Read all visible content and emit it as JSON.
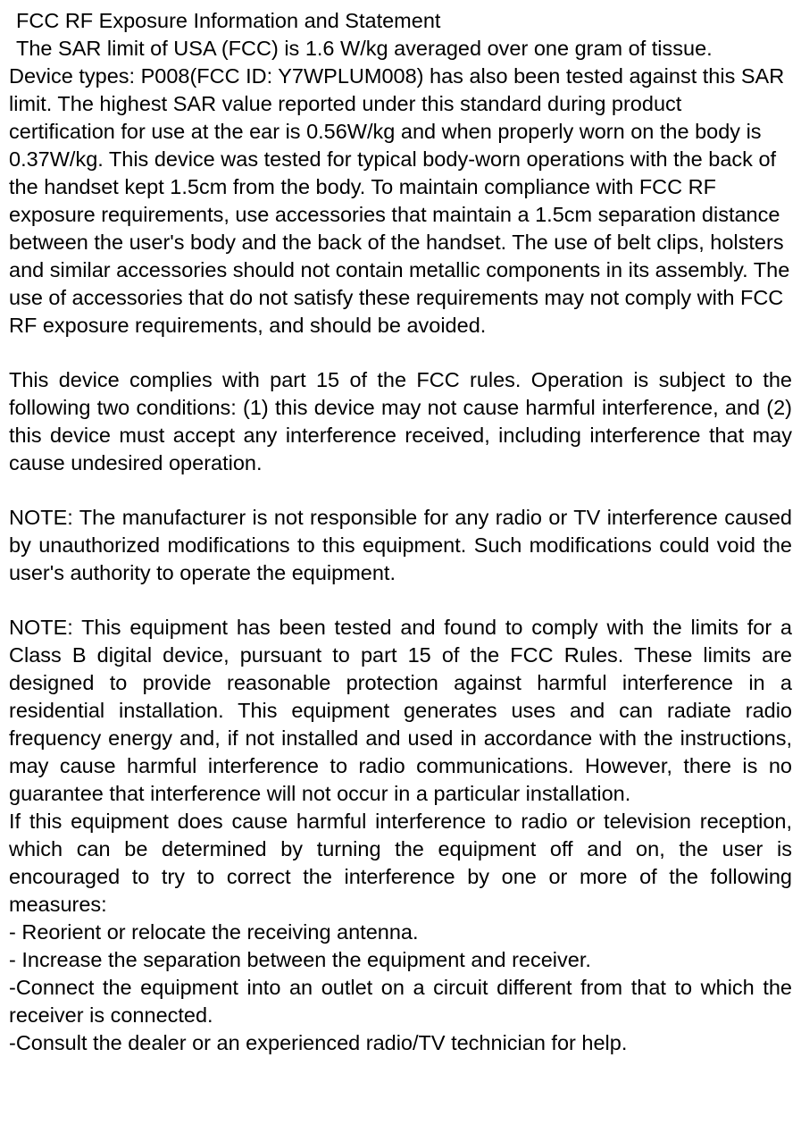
{
  "title": "FCC RF Exposure Information and Statement",
  "para1_line1": " The SAR limit of USA (FCC) is 1.6 W/kg averaged over one gram of tissue.",
  "para1_rest": "Device types: P008(FCC ID: Y7WPLUM008) has also been tested against this SAR limit. The highest SAR value reported under this standard during product certification for use at the ear is 0.56W/kg and when properly worn on the body is 0.37W/kg. This device was tested for typical body-worn operations with the back of the handset kept 1.5cm from the body. To maintain compliance with FCC RF exposure requirements, use accessories that maintain a 1.5cm separation distance between the user's body and the back of the handset. The use of belt clips, holsters and similar accessories should not contain metallic components in its assembly. The use of accessories that do not satisfy these requirements may not comply with FCC RF exposure requirements, and should be avoided.",
  "para2": "This device complies with part 15 of the FCC rules. Operation is subject to the following two conditions: (1) this device may not cause harmful interference, and (2) this device must accept any interference received, including interference that may cause undesired operation.",
  "para3": "NOTE: The manufacturer is not responsible for any radio or TV interference caused by unauthorized modifications to this equipment. Such modifications could void the user's authority to operate the equipment.",
  "para4": "NOTE: This equipment has been tested and found to comply with the limits for a Class B digital device, pursuant to part 15 of the FCC Rules.   These limits are designed to provide reasonable protection against harmful interference in a residential installation.  This equipment generates uses and can radiate radio frequency energy and, if not installed and used in accordance with the instructions, may cause harmful interference to radio communications. However, there is no guarantee that interference will not occur in a particular installation.",
  "para5": "If this equipment does cause harmful interference to radio or television reception, which can be determined by turning the equipment off and on, the user is encouraged to try to correct the interference by one or more of the following measures:",
  "measures": [
    "- Reorient or relocate the receiving antenna.",
    "- Increase the separation between the equipment and receiver.",
    "-Connect the equipment into an outlet on a circuit different from that to which the receiver is connected.",
    "-Consult the dealer or an experienced radio/TV technician for help."
  ],
  "colors": {
    "text": "#000000",
    "background": "#ffffff"
  },
  "fontsize_pt": 18
}
